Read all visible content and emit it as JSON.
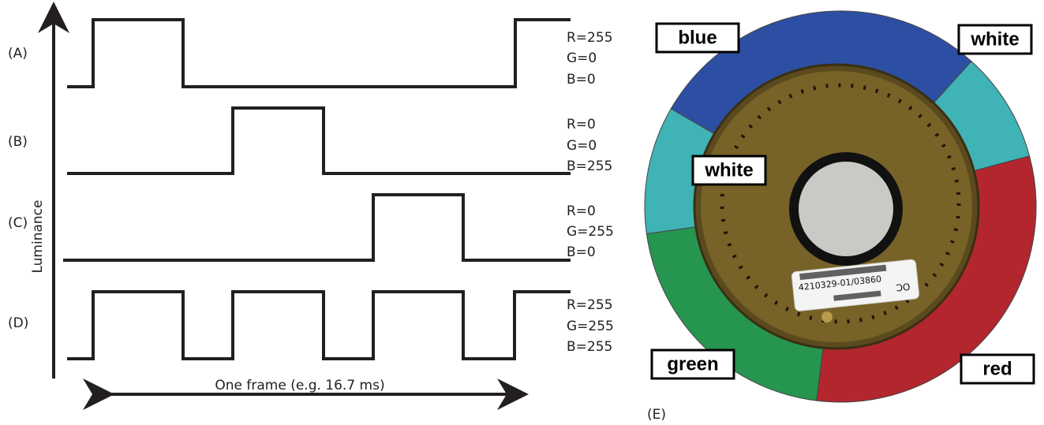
{
  "panels": [
    {
      "label": "(A)",
      "rgb": [
        "R=255",
        "G=0",
        "B=0"
      ]
    },
    {
      "label": "(B)",
      "rgb": [
        "R=0",
        "G=0",
        "B=255"
      ]
    },
    {
      "label": "(C)",
      "rgb": [
        "R=0",
        "G=255",
        "B=0"
      ]
    },
    {
      "label": "(D)",
      "rgb": [
        "R=255",
        "G=255",
        "B=255"
      ]
    }
  ],
  "y_axis_label": "Luminance",
  "x_axis_label": "One frame (e.g. 16.7 ms)",
  "wheel": {
    "labels": [
      "blue",
      "white",
      "white",
      "green",
      "red"
    ],
    "sticker": {
      "code": "4210329-01/03860",
      "mark": "OC"
    }
  },
  "panel_e_label": "(E)"
}
